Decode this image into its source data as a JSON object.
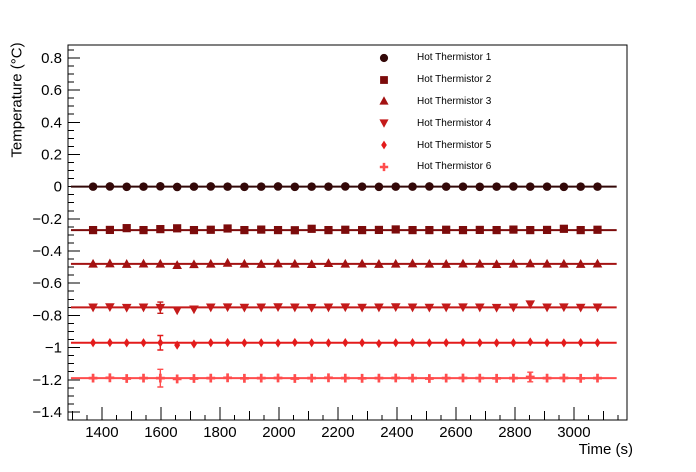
{
  "page": {
    "background": "#ffffff"
  },
  "chart_data": {
    "type": "scatter",
    "title": "",
    "xlabel": "Time (s)",
    "ylabel": "Temperature (°C)",
    "grid": false,
    "legend_position": "top-right-inside",
    "xlim": [
      1285,
      3180
    ],
    "ylim": [
      -1.45,
      0.88
    ],
    "x_major_step": 200,
    "x_mid_step": 100,
    "x_minor_step": 50,
    "x_major_ticks": [
      1400,
      1600,
      1800,
      2000,
      2200,
      2400,
      2600,
      2800,
      3000
    ],
    "x_major_labels": [
      "1400",
      "1600",
      "1800",
      "2000",
      "2200",
      "2400",
      "2600",
      "2800",
      "3000"
    ],
    "y_major_ticks": [
      0.8,
      0.6,
      0.4,
      0.2,
      0,
      -0.2,
      -0.4,
      -0.6,
      -0.8,
      -1,
      -1.2,
      -1.4
    ],
    "y_major_labels": [
      "0.8",
      "0.6",
      "0.4",
      "0.2",
      "0",
      "−0.2",
      "−0.4",
      "−0.6",
      "−0.8",
      "−1",
      "−1.2",
      "−1.4"
    ],
    "y_minor_step": 0.05,
    "fit_x": [
      1295,
      3145
    ],
    "x": [
      1370,
      1427,
      1484,
      1541,
      1598,
      1655,
      1712,
      1769,
      1826,
      1883,
      1940,
      1997,
      2054,
      2111,
      2168,
      2225,
      2282,
      2339,
      2396,
      2453,
      2510,
      2567,
      2624,
      2681,
      2738,
      2795,
      2852,
      2909,
      2966,
      3023,
      3080
    ],
    "series": [
      {
        "name": "Hot Thermistor 1",
        "marker": "circle",
        "color": "#330808",
        "fit_level": 0.0,
        "yerr_default": 0.006,
        "yerr_special": {},
        "y": [
          0,
          0.001,
          -0.001,
          0,
          0.002,
          -0.002,
          0,
          0.001,
          0,
          -0.001,
          0,
          0.001,
          -0.001,
          0,
          0,
          0.001,
          0,
          -0.001,
          0,
          0,
          0.001,
          0,
          0,
          -0.001,
          0,
          0.001,
          0,
          0,
          -0.001,
          0,
          0
        ]
      },
      {
        "name": "Hot Thermistor 2",
        "marker": "square",
        "color": "#7c0b0b",
        "fit_level": -0.27,
        "yerr_default": 0.008,
        "yerr_special": {},
        "y": [
          -0.27,
          -0.269,
          -0.258,
          -0.27,
          -0.264,
          -0.259,
          -0.27,
          -0.268,
          -0.26,
          -0.27,
          -0.267,
          -0.27,
          -0.271,
          -0.262,
          -0.27,
          -0.268,
          -0.27,
          -0.269,
          -0.266,
          -0.27,
          -0.27,
          -0.268,
          -0.27,
          -0.269,
          -0.27,
          -0.267,
          -0.27,
          -0.269,
          -0.262,
          -0.27,
          -0.268
        ]
      },
      {
        "name": "Hot Thermistor 3",
        "marker": "triangle-up",
        "color": "#a31212",
        "fit_level": -0.48,
        "yerr_default": 0.008,
        "yerr_special": {},
        "y": [
          -0.48,
          -0.478,
          -0.481,
          -0.479,
          -0.48,
          -0.488,
          -0.483,
          -0.48,
          -0.474,
          -0.48,
          -0.481,
          -0.478,
          -0.48,
          -0.482,
          -0.476,
          -0.48,
          -0.479,
          -0.481,
          -0.48,
          -0.478,
          -0.48,
          -0.481,
          -0.479,
          -0.48,
          -0.482,
          -0.48,
          -0.478,
          -0.48,
          -0.48,
          -0.481,
          -0.479
        ]
      },
      {
        "name": "Hot Thermistor 4",
        "marker": "triangle-down",
        "color": "#c41a1a",
        "fit_level": -0.75,
        "yerr_default": 0.008,
        "yerr_special": {
          "4": 0.035
        },
        "y": [
          -0.75,
          -0.748,
          -0.752,
          -0.75,
          -0.752,
          -0.768,
          -0.762,
          -0.75,
          -0.749,
          -0.751,
          -0.75,
          -0.748,
          -0.75,
          -0.752,
          -0.75,
          -0.749,
          -0.751,
          -0.75,
          -0.748,
          -0.75,
          -0.751,
          -0.75,
          -0.749,
          -0.75,
          -0.752,
          -0.75,
          -0.73,
          -0.75,
          -0.749,
          -0.751,
          -0.75
        ]
      },
      {
        "name": "Hot Thermistor 5",
        "marker": "diamond",
        "color": "#e31b1b",
        "fit_level": -0.97,
        "yerr_default": 0.008,
        "yerr_special": {
          "4": 0.045
        },
        "y": [
          -0.97,
          -0.969,
          -0.971,
          -0.97,
          -0.97,
          -0.985,
          -0.978,
          -0.97,
          -0.969,
          -0.971,
          -0.97,
          -0.972,
          -0.968,
          -0.97,
          -0.971,
          -0.969,
          -0.97,
          -0.975,
          -0.97,
          -0.969,
          -0.971,
          -0.97,
          -0.968,
          -0.97,
          -0.971,
          -0.97,
          -0.965,
          -0.97,
          -0.971,
          -0.969,
          -0.97
        ]
      },
      {
        "name": "Hot Thermistor 6",
        "marker": "plus",
        "color": "#ff4d4d",
        "fit_level": -1.19,
        "yerr_default": 0.01,
        "yerr_special": {
          "4": 0.055,
          "26": 0.03
        },
        "y": [
          -1.19,
          -1.188,
          -1.192,
          -1.19,
          -1.19,
          -1.195,
          -1.192,
          -1.19,
          -1.188,
          -1.191,
          -1.19,
          -1.189,
          -1.192,
          -1.19,
          -1.188,
          -1.19,
          -1.191,
          -1.19,
          -1.189,
          -1.19,
          -1.192,
          -1.19,
          -1.189,
          -1.19,
          -1.191,
          -1.19,
          -1.183,
          -1.19,
          -1.189,
          -1.191,
          -1.19
        ]
      }
    ]
  }
}
